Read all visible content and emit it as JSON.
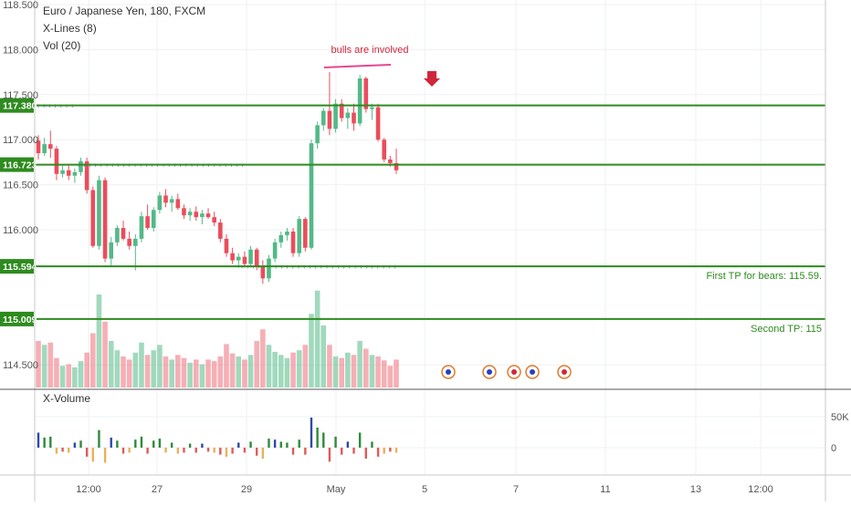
{
  "chart_data": {
    "type": "candlestick",
    "title": "Euro / Japanese Yen, 180, FXCM",
    "indicators": [
      "X-Lines (8)",
      "Vol (20)"
    ],
    "bottom_pane_label": "X-Volume",
    "annotation": "bulls are involved",
    "price_ticks": [
      "118.500",
      "118.000",
      "117.500",
      "117.000",
      "116.500",
      "116.000",
      "114.500"
    ],
    "price_tick_values": [
      118.5,
      118.0,
      117.5,
      117.0,
      116.5,
      116.0,
      114.5
    ],
    "volume_ticks": [
      "50K",
      "0"
    ],
    "time_ticks": [
      "12:00",
      "27",
      "29",
      "May",
      "5",
      "7",
      "11",
      "13",
      "12:00"
    ],
    "levels": [
      {
        "price": 117.38,
        "label": "117.380"
      },
      {
        "price": 116.723,
        "label": "116.723"
      },
      {
        "price": 115.594,
        "label": "115.594",
        "note": "First TP for bears: 115.59."
      },
      {
        "price": 115.009,
        "label": "115.009",
        "note": "Second TP: 115"
      }
    ],
    "candles": [
      [
        116.99,
        117.05,
        116.78,
        116.85
      ],
      [
        116.85,
        117.02,
        116.82,
        116.95
      ],
      [
        116.95,
        117.1,
        116.8,
        116.9
      ],
      [
        116.9,
        116.93,
        116.55,
        116.62
      ],
      [
        116.62,
        116.72,
        116.58,
        116.66
      ],
      [
        116.66,
        116.72,
        116.55,
        116.6
      ],
      [
        116.6,
        116.68,
        116.52,
        116.64
      ],
      [
        116.64,
        116.8,
        116.6,
        116.76
      ],
      [
        116.76,
        116.8,
        116.4,
        116.44
      ],
      [
        116.44,
        116.48,
        115.8,
        115.82
      ],
      [
        115.82,
        116.6,
        115.78,
        116.55
      ],
      [
        116.55,
        116.58,
        115.64,
        115.68
      ],
      [
        115.68,
        115.92,
        115.6,
        115.86
      ],
      [
        115.86,
        116.05,
        115.82,
        116.02
      ],
      [
        116.02,
        116.1,
        115.88,
        115.9
      ],
      [
        115.9,
        115.98,
        115.78,
        115.82
      ],
      [
        115.82,
        115.95,
        115.55,
        115.9
      ],
      [
        115.9,
        116.2,
        115.86,
        116.15
      ],
      [
        116.15,
        116.28,
        116.0,
        116.02
      ],
      [
        116.02,
        116.25,
        115.98,
        116.22
      ],
      [
        116.22,
        116.42,
        116.18,
        116.38
      ],
      [
        116.38,
        116.45,
        116.25,
        116.3
      ],
      [
        116.3,
        116.38,
        116.2,
        116.34
      ],
      [
        116.34,
        116.4,
        116.22,
        116.24
      ],
      [
        116.24,
        116.28,
        116.12,
        116.16
      ],
      [
        116.16,
        116.24,
        116.1,
        116.2
      ],
      [
        116.2,
        116.26,
        116.1,
        116.14
      ],
      [
        116.14,
        116.22,
        116.06,
        116.18
      ],
      [
        116.18,
        116.24,
        116.12,
        116.14
      ],
      [
        116.14,
        116.2,
        116.04,
        116.08
      ],
      [
        116.08,
        116.12,
        115.86,
        115.9
      ],
      [
        115.9,
        115.95,
        115.7,
        115.74
      ],
      [
        115.74,
        115.8,
        115.62,
        115.66
      ],
      [
        115.66,
        115.74,
        115.58,
        115.7
      ],
      [
        115.7,
        115.76,
        115.58,
        115.62
      ],
      [
        115.62,
        115.82,
        115.58,
        115.78
      ],
      [
        115.78,
        115.8,
        115.55,
        115.6
      ],
      [
        115.6,
        115.66,
        115.4,
        115.46
      ],
      [
        115.46,
        115.72,
        115.42,
        115.68
      ],
      [
        115.68,
        115.9,
        115.64,
        115.86
      ],
      [
        115.86,
        115.98,
        115.8,
        115.94
      ],
      [
        115.94,
        116.02,
        115.88,
        115.98
      ],
      [
        115.98,
        116.02,
        115.7,
        115.74
      ],
      [
        115.74,
        116.15,
        115.7,
        116.12
      ],
      [
        116.12,
        116.14,
        115.76,
        115.8
      ],
      [
        115.8,
        117.0,
        115.78,
        116.96
      ],
      [
        116.96,
        117.2,
        116.9,
        117.16
      ],
      [
        117.16,
        117.35,
        117.1,
        117.32
      ],
      [
        117.32,
        117.75,
        117.05,
        117.12
      ],
      [
        117.12,
        117.45,
        117.08,
        117.4
      ],
      [
        117.4,
        117.45,
        117.2,
        117.24
      ],
      [
        117.24,
        117.35,
        117.12,
        117.3
      ],
      [
        117.3,
        117.4,
        117.1,
        117.18
      ],
      [
        117.18,
        117.72,
        117.15,
        117.68
      ],
      [
        117.68,
        117.7,
        117.3,
        117.34
      ],
      [
        117.34,
        117.4,
        117.22,
        117.36
      ],
      [
        117.36,
        117.4,
        116.98,
        117.0
      ],
      [
        117.0,
        117.02,
        116.75,
        116.78
      ],
      [
        116.78,
        116.82,
        116.7,
        116.74
      ],
      [
        116.74,
        116.9,
        116.62,
        116.66
      ]
    ],
    "volume": [
      60,
      55,
      58,
      38,
      28,
      30,
      26,
      34,
      45,
      70,
      120,
      85,
      60,
      48,
      40,
      36,
      45,
      58,
      42,
      48,
      55,
      40,
      36,
      42,
      38,
      32,
      36,
      30,
      36,
      34,
      40,
      56,
      44,
      40,
      36,
      42,
      60,
      75,
      55,
      46,
      42,
      38,
      45,
      48,
      55,
      95,
      125,
      80,
      55,
      40,
      38,
      45,
      42,
      60,
      50,
      42,
      40,
      35,
      28,
      36
    ],
    "xvolume": [
      30,
      20,
      22,
      -12,
      -8,
      -10,
      10,
      14,
      -18,
      -28,
      35,
      -30,
      20,
      14,
      -12,
      -10,
      16,
      22,
      -12,
      14,
      18,
      -10,
      10,
      -12,
      -10,
      8,
      -10,
      8,
      -8,
      -10,
      -14,
      -18,
      -12,
      10,
      -10,
      12,
      -16,
      -22,
      18,
      16,
      12,
      10,
      -14,
      16,
      -14,
      60,
      40,
      30,
      -28,
      22,
      -14,
      12,
      -12,
      30,
      -22,
      12,
      -18,
      -12,
      -8,
      -10
    ]
  }
}
